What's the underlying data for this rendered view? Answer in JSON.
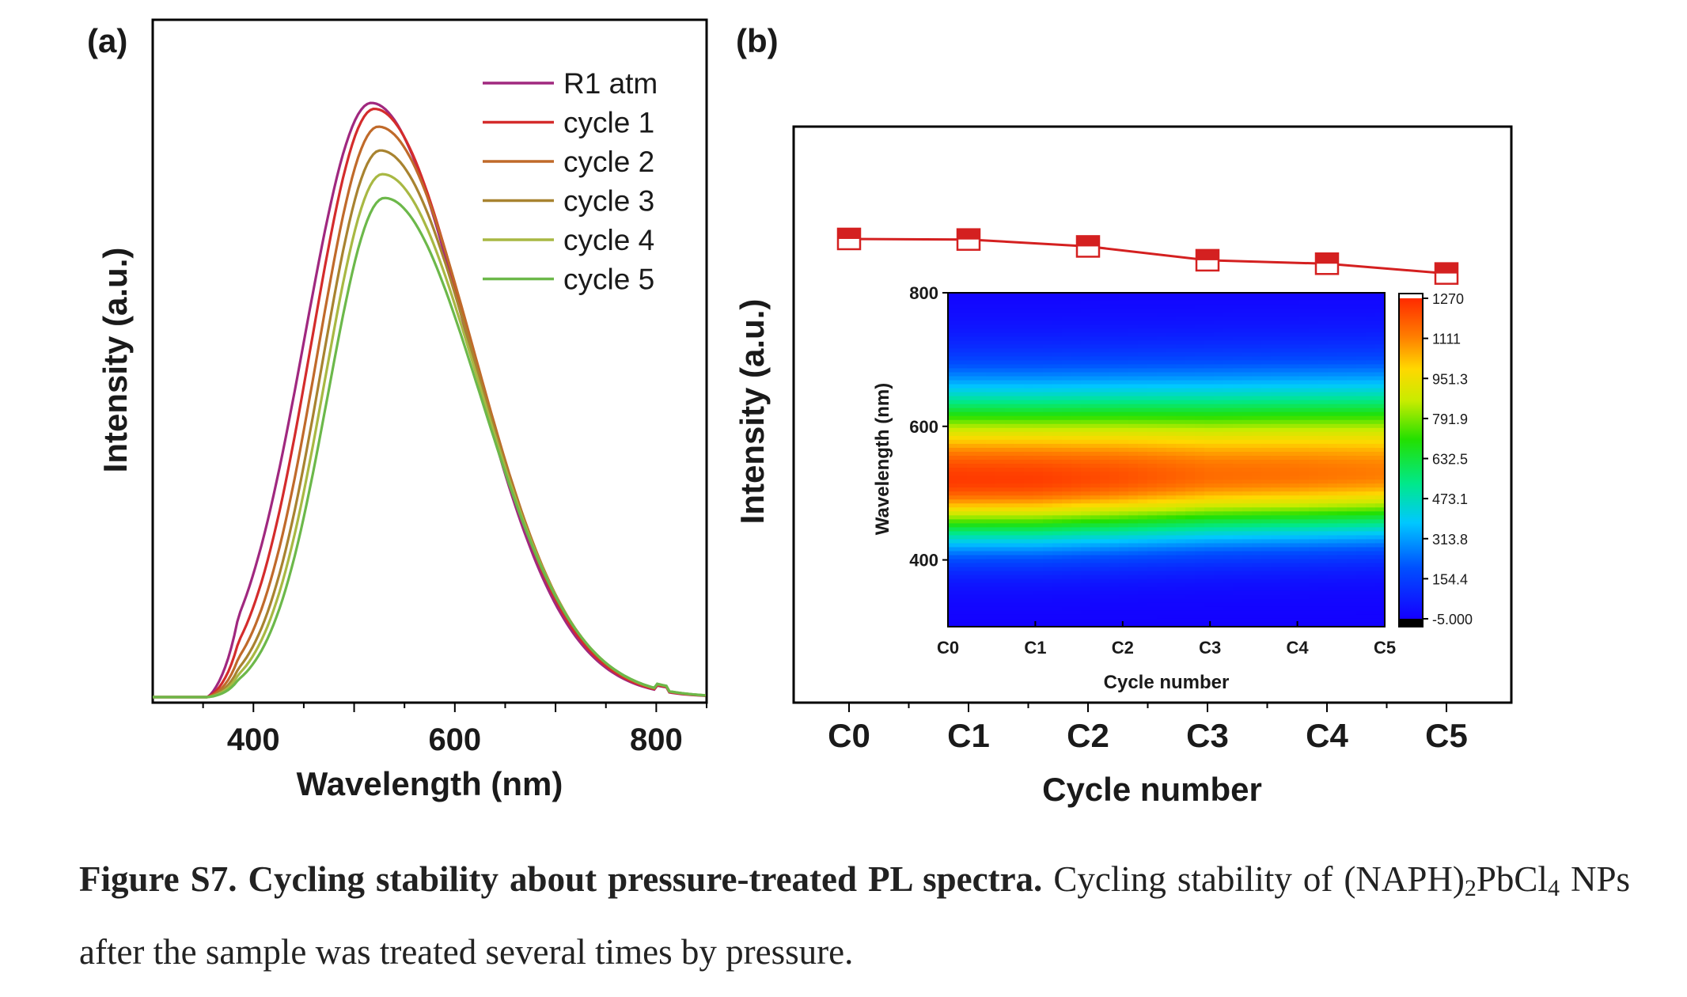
{
  "chart_data": [
    {
      "type": "line",
      "panel_label": "(a)",
      "xlabel": "Wavelength (nm)",
      "ylabel": "Intensity (a.u.)",
      "xlim": [
        300,
        850
      ],
      "xticks": [
        "400",
        "600",
        "800"
      ],
      "grid": false,
      "legend_position": "top-right",
      "series": [
        {
          "name": "R1 atm",
          "color": "#a0287f",
          "peak_x": 517,
          "peak_y": 1.0,
          "sigma_left": 66,
          "sigma_right": 95
        },
        {
          "name": "cycle 1",
          "color": "#d42c2c",
          "peak_x": 520,
          "peak_y": 0.99,
          "sigma_left": 62,
          "sigma_right": 95
        },
        {
          "name": "cycle 2",
          "color": "#c06a2a",
          "peak_x": 524,
          "peak_y": 0.96,
          "sigma_left": 60,
          "sigma_right": 95
        },
        {
          "name": "cycle 3",
          "color": "#a88330",
          "peak_x": 526,
          "peak_y": 0.92,
          "sigma_left": 58,
          "sigma_right": 95
        },
        {
          "name": "cycle 4",
          "color": "#a8b843",
          "peak_x": 528,
          "peak_y": 0.88,
          "sigma_left": 57,
          "sigma_right": 95
        },
        {
          "name": "cycle 5",
          "color": "#6cb84a",
          "peak_x": 530,
          "peak_y": 0.84,
          "sigma_left": 56,
          "sigma_right": 95
        }
      ]
    },
    {
      "type": "line",
      "panel_label": "(b)",
      "xlabel": "Cycle number",
      "ylabel": "Intensity (a.u.)",
      "categories": [
        "C0",
        "C1",
        "C2",
        "C3",
        "C4",
        "C5"
      ],
      "ylim": [
        0,
        1
      ],
      "color": "#d42020",
      "series": [
        {
          "values": [
            0.805,
            0.804,
            0.792,
            0.768,
            0.762,
            0.745
          ]
        }
      ]
    },
    {
      "type": "heatmap",
      "panel_label": "(b) inset",
      "xlabel": "Cycle number",
      "ylabel": "Wavelength (nm)",
      "xticks": [
        "C0",
        "C1",
        "C2",
        "C3",
        "C4",
        "C5"
      ],
      "ylim": [
        300,
        800
      ],
      "yticks": [
        "400",
        "600",
        "800"
      ],
      "colorbar_ticks": [
        "1270",
        "1111",
        "951.3",
        "791.9",
        "632.5",
        "473.1",
        "313.8",
        "154.4",
        "-5.000"
      ],
      "zlim": [
        -5,
        1270
      ],
      "peak_center_nm": [
        520,
        520,
        523,
        526,
        528,
        530
      ],
      "peak_intensity": [
        1240,
        1235,
        1200,
        1150,
        1140,
        1120
      ]
    }
  ],
  "caption": {
    "label": "Figure S7. Cycling stability about pressure-treated PL spectra.",
    "text_1": " Cycling stability of (NAPH)",
    "sub_1": "2",
    "text_2": "PbCl",
    "sub_2": "4",
    "text_3": " NPs after the sample was treated several times by pressure."
  }
}
